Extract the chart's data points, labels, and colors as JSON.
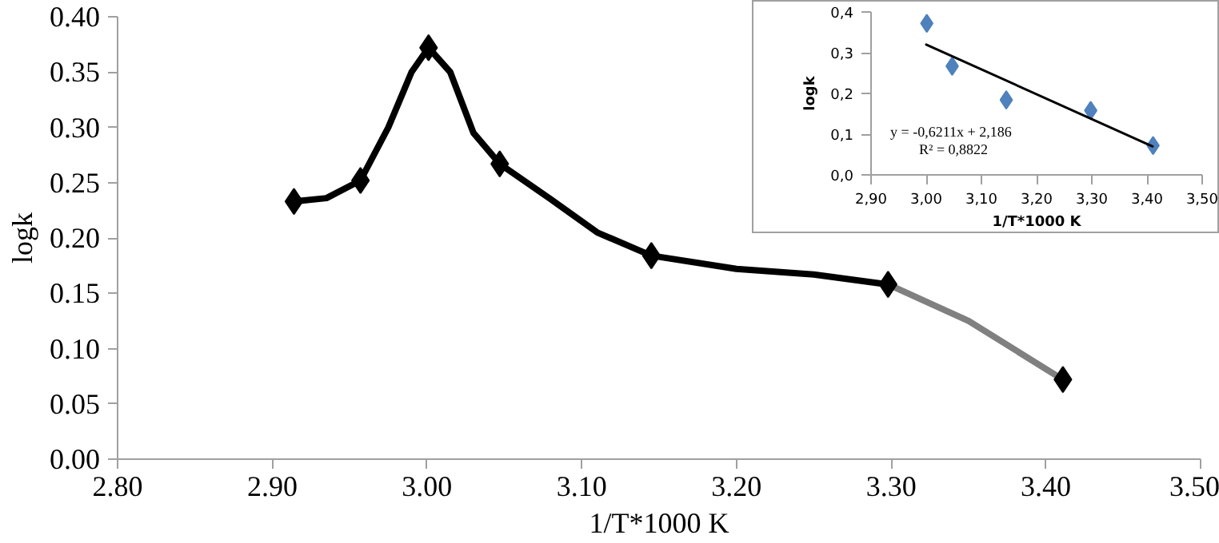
{
  "chart_data": [
    {
      "type": "line",
      "xlabel": "1/T*1000 K",
      "ylabel": "logk",
      "xlim": [
        2.8,
        3.5
      ],
      "ylim": [
        0,
        0.4
      ],
      "xticks": [
        {
          "value": 2.8,
          "label": "2.80"
        },
        {
          "value": 2.9,
          "label": "2.90"
        },
        {
          "value": 3.0,
          "label": "3.00"
        },
        {
          "value": 3.1,
          "label": "3.10"
        },
        {
          "value": 3.2,
          "label": "3.20"
        },
        {
          "value": 3.3,
          "label": "3.30"
        },
        {
          "value": 3.4,
          "label": "3.40"
        },
        {
          "value": 3.5,
          "label": "3.50"
        }
      ],
      "yticks": [
        {
          "value": 0,
          "label": "0.00"
        },
        {
          "value": 0.05,
          "label": "0.05"
        },
        {
          "value": 0.1,
          "label": "0.10"
        },
        {
          "value": 0.15,
          "label": "0.15"
        },
        {
          "value": 0.2,
          "label": "0.20"
        },
        {
          "value": 0.25,
          "label": "0.25"
        },
        {
          "value": 0.3,
          "label": "0.30"
        },
        {
          "value": 0.35,
          "label": "0.35"
        },
        {
          "value": 0.4,
          "label": "0.40"
        }
      ],
      "grid": false,
      "series": [
        {
          "color": "#000000",
          "marker": "none",
          "x": [
            2.914,
            2.935,
            2.957,
            2.975,
            2.99,
            3.001,
            3.015,
            3.03,
            3.047,
            3.08,
            3.11,
            3.145,
            3.2,
            3.25,
            3.298
          ],
          "values": [
            0.233,
            0.236,
            0.252,
            0.3,
            0.35,
            0.372,
            0.35,
            0.295,
            0.267,
            0.235,
            0.205,
            0.184,
            0.172,
            0.167,
            0.158
          ]
        },
        {
          "color": "#808080",
          "marker": "none",
          "x": [
            3.298,
            3.35,
            3.411
          ],
          "values": [
            0.158,
            0.125,
            0.072
          ]
        },
        {
          "type": "scatter",
          "color": "#000000",
          "marker": "diamond",
          "x": [
            2.914,
            2.957,
            3.001,
            3.047,
            3.145,
            3.298,
            3.411
          ],
          "values": [
            0.233,
            0.252,
            0.372,
            0.267,
            0.184,
            0.158,
            0.072
          ]
        }
      ]
    },
    {
      "type": "scatter",
      "xlabel": "1/T*1000 K",
      "ylabel": "logk",
      "xlim": [
        2.9,
        3.5
      ],
      "ylim": [
        0,
        0.4
      ],
      "xticks": [
        {
          "value": 2.9,
          "label": "2,90"
        },
        {
          "value": 3.0,
          "label": "3,00"
        },
        {
          "value": 3.1,
          "label": "3,10"
        },
        {
          "value": 3.2,
          "label": "3,20"
        },
        {
          "value": 3.3,
          "label": "3,30"
        },
        {
          "value": 3.4,
          "label": "3,40"
        },
        {
          "value": 3.5,
          "label": "3,50"
        }
      ],
      "yticks": [
        {
          "value": 0,
          "label": "0,0"
        },
        {
          "value": 0.1,
          "label": "0,1"
        },
        {
          "value": 0.2,
          "label": "0,2"
        },
        {
          "value": 0.3,
          "label": "0,3"
        },
        {
          "value": 0.4,
          "label": "0,4"
        }
      ],
      "grid": false,
      "annotations": [
        "y = -0,6211x + 2,186",
        "R² = 0,8822"
      ],
      "series": [
        {
          "color": "#4f81bd",
          "marker": "diamond",
          "x": [
            3.001,
            3.047,
            3.145,
            3.298,
            3.411
          ],
          "values": [
            0.372,
            0.267,
            0.184,
            0.158,
            0.072
          ]
        },
        {
          "type": "line",
          "color": "#000000",
          "marker": "none",
          "x": [
            3.0,
            3.41
          ],
          "values": [
            0.32,
            0.07
          ]
        }
      ]
    }
  ]
}
